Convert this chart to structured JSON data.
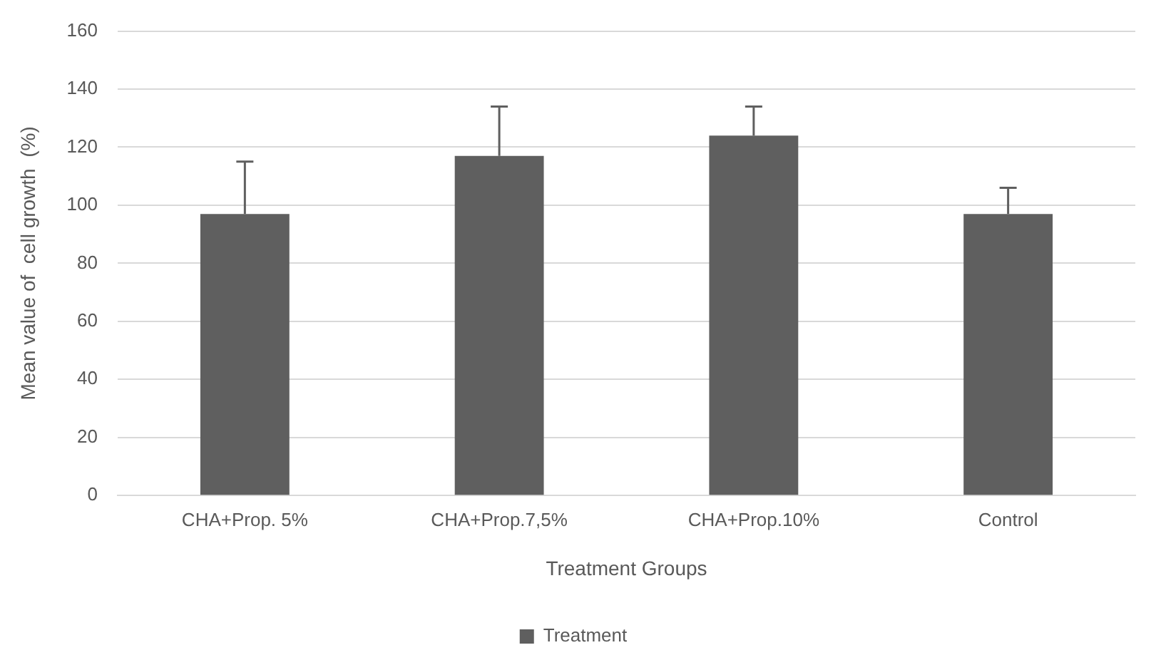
{
  "chart_data": {
    "type": "bar",
    "xlabel": "Treatment Groups",
    "ylabel": "Mean value of  cell growth  (%)",
    "categories": [
      "CHA+Prop. 5%",
      "CHA+Prop.7,5%",
      "CHA+Prop.10%",
      "Control"
    ],
    "series": [
      {
        "name": "Treatment",
        "color": "#5f5f5f",
        "values": [
          97,
          117,
          124,
          97
        ],
        "errors": [
          [
            97,
            115
          ],
          [
            117,
            134
          ],
          [
            124,
            134
          ],
          [
            97,
            106
          ]
        ]
      }
    ],
    "ylim": [
      0,
      160
    ],
    "yticks": [
      0,
      20,
      40,
      60,
      80,
      100,
      120,
      140,
      160
    ],
    "grid": "y",
    "legend": "bottom"
  }
}
